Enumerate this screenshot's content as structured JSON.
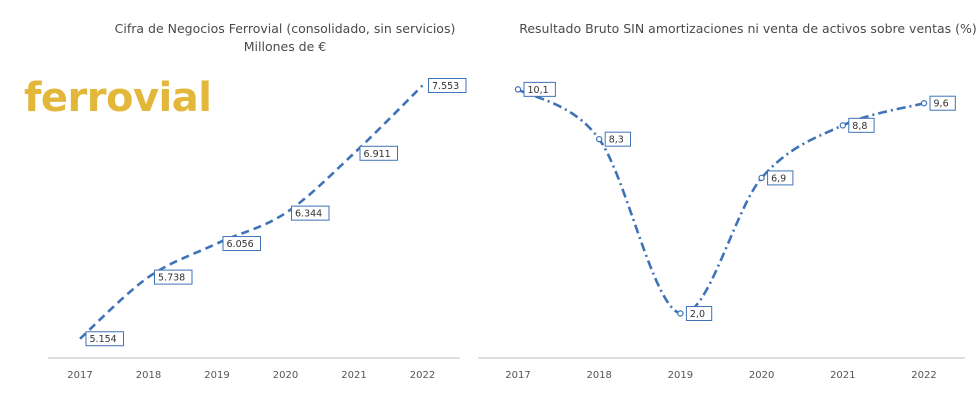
{
  "logo": {
    "text": "ferrovial",
    "color": "#e3b73a"
  },
  "colors": {
    "series": "#3f73b8",
    "axis": "#bfbfbf"
  },
  "chart_data": [
    {
      "type": "line",
      "title": "Cifra de Negocios Ferrovial (consolidado, sin servicios)",
      "subtitle": "Millones de €",
      "categories": [
        "2017",
        "2018",
        "2019",
        "2020",
        "2021",
        "2022"
      ],
      "values": [
        5154,
        5738,
        6056,
        6344,
        6911,
        7553
      ],
      "labels": [
        "5.154",
        "5.738",
        "6.056",
        "6.344",
        "6.911",
        "7.553"
      ],
      "ylim": [
        5000,
        7700
      ],
      "line_style": "dashed",
      "markers": false,
      "grid": false,
      "legend": "none"
    },
    {
      "type": "line",
      "title": "Resultado Bruto SIN amortizaciones ni venta de activos sobre ventas (%)",
      "categories": [
        "2017",
        "2018",
        "2019",
        "2020",
        "2021",
        "2022"
      ],
      "values": [
        10.1,
        8.3,
        2.0,
        6.9,
        8.8,
        9.6
      ],
      "labels": [
        "10,1",
        "8,3",
        "2,0",
        "6,9",
        "8,8",
        "9,6"
      ],
      "ylim": [
        0.5,
        10.8
      ],
      "line_style": "dash-dot",
      "markers": true,
      "grid": false,
      "legend": "none"
    }
  ]
}
